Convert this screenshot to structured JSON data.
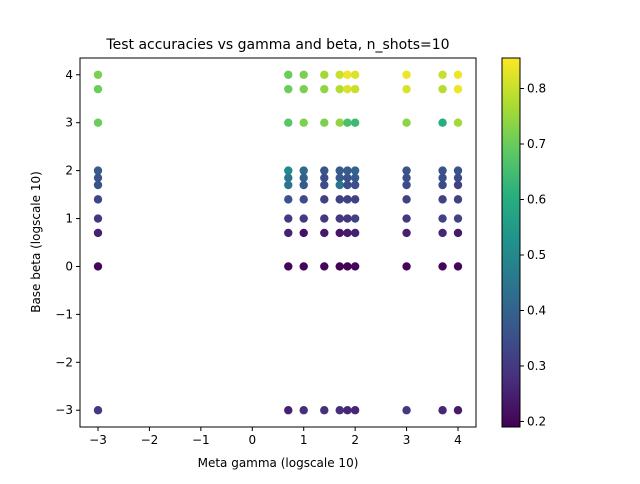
{
  "chart_data": {
    "type": "scatter",
    "title": "Test accuracies vs gamma and beta, n_shots=10",
    "xlabel": "Meta gamma (logscale 10)",
    "ylabel": "Base beta (logscale 10)",
    "xlim": [
      -3.35,
      4.35
    ],
    "ylim": [
      -3.35,
      4.35
    ],
    "xticks": [
      "−3",
      "−2",
      "−1",
      "0",
      "1",
      "2",
      "3",
      "4"
    ],
    "yticks": [
      "−3",
      "−2",
      "−1",
      "0",
      "1",
      "2",
      "3",
      "4"
    ],
    "colorbar": {
      "colormap": "viridis",
      "range": [
        0.19,
        0.855
      ],
      "ticks": [
        "0.2",
        "0.3",
        "0.4",
        "0.5",
        "0.6",
        "0.7",
        "0.8"
      ],
      "tick_values": [
        0.2,
        0.3,
        0.4,
        0.5,
        0.6,
        0.7,
        0.8
      ]
    },
    "grid": false,
    "color_encodes": "test accuracy",
    "points": [
      {
        "x": -3,
        "y": 4,
        "c": 0.72
      },
      {
        "x": -3,
        "y": 3.7,
        "c": 0.7
      },
      {
        "x": -3,
        "y": 3,
        "c": 0.7
      },
      {
        "x": -3,
        "y": 2,
        "c": 0.38
      },
      {
        "x": -3,
        "y": 1.85,
        "c": 0.36
      },
      {
        "x": -3,
        "y": 1.7,
        "c": 0.36
      },
      {
        "x": -3,
        "y": 1.4,
        "c": 0.33
      },
      {
        "x": -3,
        "y": 1,
        "c": 0.3
      },
      {
        "x": -3,
        "y": 0.7,
        "c": 0.25
      },
      {
        "x": -3,
        "y": 0,
        "c": 0.2
      },
      {
        "x": -3,
        "y": -3,
        "c": 0.3
      },
      {
        "x": 0.7,
        "y": 4,
        "c": 0.7
      },
      {
        "x": 0.7,
        "y": 3.7,
        "c": 0.7
      },
      {
        "x": 0.7,
        "y": 3,
        "c": 0.68
      },
      {
        "x": 0.7,
        "y": 2,
        "c": 0.5
      },
      {
        "x": 0.7,
        "y": 1.85,
        "c": 0.45
      },
      {
        "x": 0.7,
        "y": 1.7,
        "c": 0.45
      },
      {
        "x": 0.7,
        "y": 1.4,
        "c": 0.36
      },
      {
        "x": 0.7,
        "y": 1,
        "c": 0.3
      },
      {
        "x": 0.7,
        "y": 0.7,
        "c": 0.25
      },
      {
        "x": 0.7,
        "y": 0,
        "c": 0.2
      },
      {
        "x": 0.7,
        "y": -3,
        "c": 0.25
      },
      {
        "x": 1,
        "y": 4,
        "c": 0.72
      },
      {
        "x": 1,
        "y": 3.7,
        "c": 0.72
      },
      {
        "x": 1,
        "y": 3,
        "c": 0.72
      },
      {
        "x": 1,
        "y": 2,
        "c": 0.42
      },
      {
        "x": 1,
        "y": 1.85,
        "c": 0.4
      },
      {
        "x": 1,
        "y": 1.7,
        "c": 0.38
      },
      {
        "x": 1,
        "y": 1.4,
        "c": 0.34
      },
      {
        "x": 1,
        "y": 1,
        "c": 0.3
      },
      {
        "x": 1,
        "y": 0.7,
        "c": 0.22
      },
      {
        "x": 1,
        "y": 0,
        "c": 0.2
      },
      {
        "x": 1,
        "y": -3,
        "c": 0.28
      },
      {
        "x": 1.4,
        "y": 4,
        "c": 0.76
      },
      {
        "x": 1.4,
        "y": 3.7,
        "c": 0.74
      },
      {
        "x": 1.4,
        "y": 3,
        "c": 0.72
      },
      {
        "x": 1.4,
        "y": 2,
        "c": 0.36
      },
      {
        "x": 1.4,
        "y": 1.85,
        "c": 0.34
      },
      {
        "x": 1.4,
        "y": 1.7,
        "c": 0.34
      },
      {
        "x": 1.4,
        "y": 1.4,
        "c": 0.32
      },
      {
        "x": 1.4,
        "y": 1,
        "c": 0.3
      },
      {
        "x": 1.4,
        "y": 0.7,
        "c": 0.24
      },
      {
        "x": 1.4,
        "y": 0,
        "c": 0.2
      },
      {
        "x": 1.4,
        "y": -3,
        "c": 0.28
      },
      {
        "x": 1.7,
        "y": 4,
        "c": 0.8
      },
      {
        "x": 1.7,
        "y": 3.7,
        "c": 0.78
      },
      {
        "x": 1.7,
        "y": 3,
        "c": 0.74
      },
      {
        "x": 1.7,
        "y": 2,
        "c": 0.38
      },
      {
        "x": 1.7,
        "y": 1.85,
        "c": 0.38
      },
      {
        "x": 1.7,
        "y": 1.7,
        "c": 0.45
      },
      {
        "x": 1.7,
        "y": 1.4,
        "c": 0.32
      },
      {
        "x": 1.7,
        "y": 1,
        "c": 0.3
      },
      {
        "x": 1.7,
        "y": 0.7,
        "c": 0.23
      },
      {
        "x": 1.7,
        "y": 0,
        "c": 0.19
      },
      {
        "x": 1.7,
        "y": -3,
        "c": 0.28
      },
      {
        "x": 1.85,
        "y": 4,
        "c": 0.84
      },
      {
        "x": 1.85,
        "y": 3.7,
        "c": 0.82
      },
      {
        "x": 1.85,
        "y": 3,
        "c": 0.66
      },
      {
        "x": 1.85,
        "y": 2,
        "c": 0.38
      },
      {
        "x": 1.85,
        "y": 1.85,
        "c": 0.36
      },
      {
        "x": 1.85,
        "y": 1.7,
        "c": 0.34
      },
      {
        "x": 1.85,
        "y": 1.4,
        "c": 0.32
      },
      {
        "x": 1.85,
        "y": 1,
        "c": 0.3
      },
      {
        "x": 1.85,
        "y": 0.7,
        "c": 0.24
      },
      {
        "x": 1.85,
        "y": 0,
        "c": 0.19
      },
      {
        "x": 1.85,
        "y": -3,
        "c": 0.26
      },
      {
        "x": 2,
        "y": 4,
        "c": 0.82
      },
      {
        "x": 2,
        "y": 3.7,
        "c": 0.8
      },
      {
        "x": 2,
        "y": 3,
        "c": 0.64
      },
      {
        "x": 2,
        "y": 2,
        "c": 0.4
      },
      {
        "x": 2,
        "y": 1.85,
        "c": 0.38
      },
      {
        "x": 2,
        "y": 1.7,
        "c": 0.35
      },
      {
        "x": 2,
        "y": 1.4,
        "c": 0.32
      },
      {
        "x": 2,
        "y": 1,
        "c": 0.32
      },
      {
        "x": 2,
        "y": 0.7,
        "c": 0.25
      },
      {
        "x": 2,
        "y": 0,
        "c": 0.2
      },
      {
        "x": 2,
        "y": -3,
        "c": 0.26
      },
      {
        "x": 3,
        "y": 4,
        "c": 0.84
      },
      {
        "x": 3,
        "y": 3.7,
        "c": 0.82
      },
      {
        "x": 3,
        "y": 3,
        "c": 0.74
      },
      {
        "x": 3,
        "y": 2,
        "c": 0.36
      },
      {
        "x": 3,
        "y": 1.85,
        "c": 0.35
      },
      {
        "x": 3,
        "y": 1.7,
        "c": 0.34
      },
      {
        "x": 3,
        "y": 1.4,
        "c": 0.32
      },
      {
        "x": 3,
        "y": 1,
        "c": 0.3
      },
      {
        "x": 3,
        "y": 0.7,
        "c": 0.25
      },
      {
        "x": 3,
        "y": 0,
        "c": 0.2
      },
      {
        "x": 3,
        "y": -3,
        "c": 0.3
      },
      {
        "x": 3.7,
        "y": 4,
        "c": 0.8
      },
      {
        "x": 3.7,
        "y": 3.7,
        "c": 0.78
      },
      {
        "x": 3.7,
        "y": 3,
        "c": 0.6
      },
      {
        "x": 3.7,
        "y": 2,
        "c": 0.36
      },
      {
        "x": 3.7,
        "y": 1.85,
        "c": 0.35
      },
      {
        "x": 3.7,
        "y": 1.7,
        "c": 0.34
      },
      {
        "x": 3.7,
        "y": 1.4,
        "c": 0.32
      },
      {
        "x": 3.7,
        "y": 1,
        "c": 0.32
      },
      {
        "x": 3.7,
        "y": 0.7,
        "c": 0.26
      },
      {
        "x": 3.7,
        "y": 0,
        "c": 0.2
      },
      {
        "x": 3.7,
        "y": -3,
        "c": 0.26
      },
      {
        "x": 4,
        "y": 4,
        "c": 0.84
      },
      {
        "x": 4,
        "y": 3.7,
        "c": 0.84
      },
      {
        "x": 4,
        "y": 3,
        "c": 0.76
      },
      {
        "x": 4,
        "y": 2,
        "c": 0.36
      },
      {
        "x": 4,
        "y": 1.85,
        "c": 0.34
      },
      {
        "x": 4,
        "y": 1.7,
        "c": 0.32
      },
      {
        "x": 4,
        "y": 1.4,
        "c": 0.32
      },
      {
        "x": 4,
        "y": 1,
        "c": 0.32
      },
      {
        "x": 4,
        "y": 0.7,
        "c": 0.24
      },
      {
        "x": 4,
        "y": 0,
        "c": 0.2
      },
      {
        "x": 4,
        "y": -3,
        "c": 0.24
      }
    ]
  }
}
